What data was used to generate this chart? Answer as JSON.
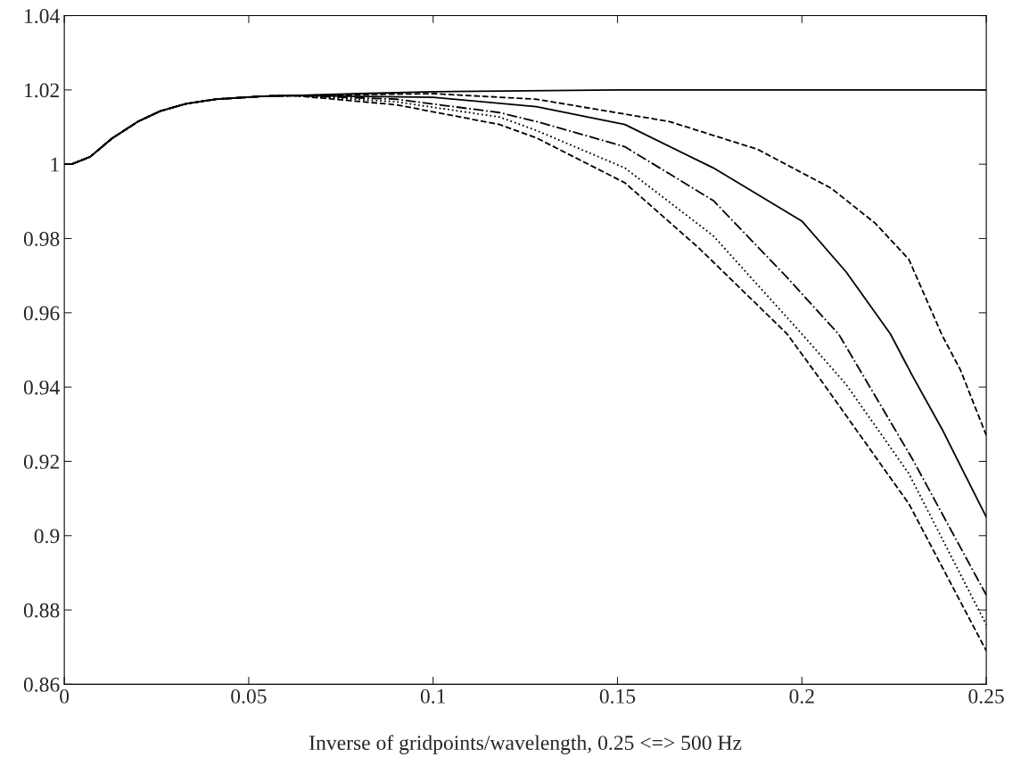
{
  "chart_data": {
    "type": "line",
    "xlabel": "Inverse of gridpoints/wavelength, 0.25 <=> 500 Hz",
    "xlim": [
      0,
      0.25
    ],
    "ylim": [
      0.86,
      1.04
    ],
    "xticks": [
      0,
      0.05,
      0.1,
      0.15,
      0.2,
      0.25
    ],
    "yticks": [
      0.86,
      0.88,
      0.9,
      0.92,
      0.94,
      0.96,
      0.98,
      1,
      1.02,
      1.04
    ],
    "grid": false,
    "legend": false,
    "series": [
      {
        "color": "#000000",
        "line_style": "solid",
        "x": [
          0,
          0.002,
          0.007,
          0.013,
          0.02,
          0.026,
          0.033,
          0.041,
          0.054,
          0.062,
          0.08,
          0.1,
          0.15,
          0.2,
          0.25
        ],
        "values": [
          1.0,
          1.0,
          1.002,
          1.007,
          1.0115,
          1.0143,
          1.0163,
          1.0175,
          1.0183,
          1.0185,
          1.019,
          1.0195,
          1.02,
          1.02,
          1.02
        ]
      },
      {
        "color": "#000000",
        "line_style": "dashed",
        "x": [
          0,
          0.002,
          0.007,
          0.013,
          0.02,
          0.026,
          0.033,
          0.041,
          0.054,
          0.062,
          0.1,
          0.128,
          0.164,
          0.188,
          0.208,
          0.22,
          0.229,
          0.238,
          0.243,
          0.25
        ],
        "values": [
          1.0,
          1.0,
          1.002,
          1.007,
          1.0115,
          1.0143,
          1.0163,
          1.0175,
          1.0183,
          1.0185,
          1.019,
          1.0175,
          1.0115,
          1.004,
          0.9935,
          0.984,
          0.9744,
          0.954,
          0.9446,
          0.927
        ]
      },
      {
        "color": "#000000",
        "line_style": "solid",
        "x": [
          0,
          0.002,
          0.007,
          0.013,
          0.02,
          0.026,
          0.033,
          0.041,
          0.054,
          0.062,
          0.1,
          0.128,
          0.152,
          0.176,
          0.2,
          0.212,
          0.224,
          0.23,
          0.238,
          0.25
        ],
        "values": [
          1.0,
          1.0,
          1.002,
          1.007,
          1.0115,
          1.0143,
          1.0163,
          1.0175,
          1.0183,
          1.0185,
          1.018,
          1.0155,
          1.0107,
          0.999,
          0.9847,
          0.971,
          0.9543,
          0.943,
          0.9287,
          0.905
        ]
      },
      {
        "color": "#000000",
        "line_style": "dashdot",
        "x": [
          0,
          0.002,
          0.007,
          0.013,
          0.02,
          0.026,
          0.033,
          0.041,
          0.054,
          0.062,
          0.09,
          0.118,
          0.128,
          0.152,
          0.176,
          0.196,
          0.21,
          0.23,
          0.25
        ],
        "values": [
          1.0,
          1.0,
          1.002,
          1.007,
          1.0115,
          1.0143,
          1.0163,
          1.0175,
          1.0183,
          1.0185,
          1.0175,
          1.0139,
          1.0115,
          1.0047,
          0.9902,
          0.9695,
          0.9542,
          0.9206,
          0.884
        ]
      },
      {
        "color": "#000000",
        "line_style": "dotted",
        "x": [
          0,
          0.002,
          0.007,
          0.013,
          0.02,
          0.026,
          0.033,
          0.041,
          0.054,
          0.062,
          0.09,
          0.118,
          0.128,
          0.152,
          0.176,
          0.2,
          0.212,
          0.229,
          0.25
        ],
        "values": [
          1.0,
          1.0,
          1.002,
          1.007,
          1.0115,
          1.0143,
          1.0163,
          1.0175,
          1.0183,
          1.0185,
          1.0168,
          1.0127,
          1.0091,
          0.999,
          0.9807,
          0.9543,
          0.9407,
          0.9167,
          0.876
        ]
      },
      {
        "color": "#000000",
        "line_style": "dashed",
        "x": [
          0,
          0.002,
          0.007,
          0.013,
          0.02,
          0.026,
          0.033,
          0.041,
          0.054,
          0.062,
          0.09,
          0.118,
          0.128,
          0.152,
          0.172,
          0.196,
          0.206,
          0.229,
          0.25
        ],
        "values": [
          1.0,
          1.0,
          1.002,
          1.007,
          1.0115,
          1.0143,
          1.0163,
          1.0175,
          1.0183,
          1.0185,
          1.016,
          1.0107,
          1.0071,
          0.995,
          0.9775,
          0.9543,
          0.9407,
          0.9086,
          0.869
        ]
      }
    ]
  }
}
